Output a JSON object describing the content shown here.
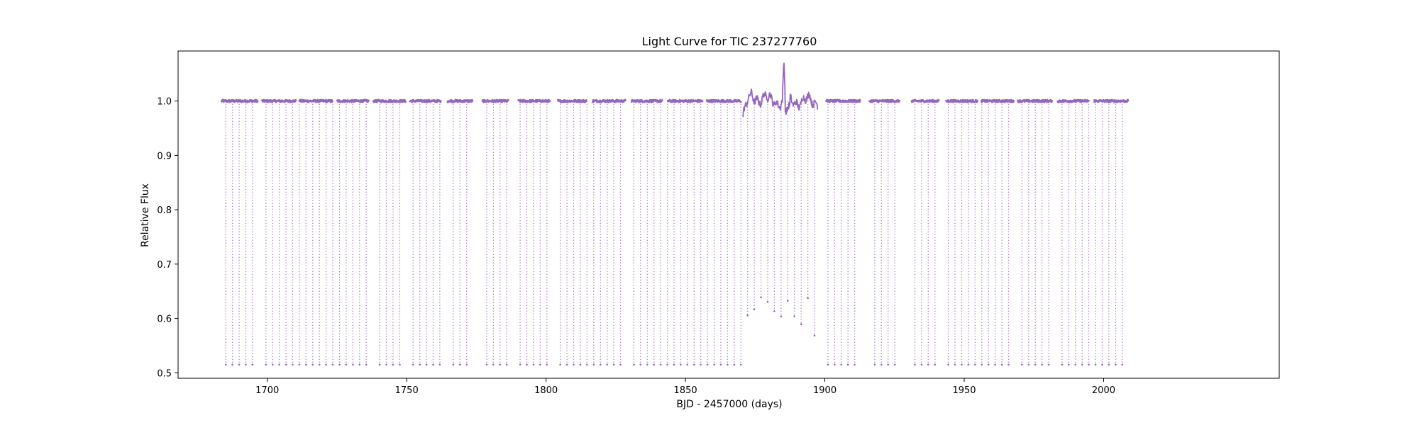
{
  "chart_data": {
    "type": "scatter",
    "title": "Light Curve for TIC 237277760",
    "xlabel": "BJD - 2457000 (days)",
    "ylabel": "Relative Flux",
    "xlim": [
      1668,
      2063
    ],
    "ylim": [
      0.49,
      1.092
    ],
    "x_ticks": [
      1700,
      1750,
      1800,
      1850,
      1900,
      1950,
      2000
    ],
    "y_ticks": [
      0.5,
      0.6,
      0.7,
      0.8,
      0.9,
      1.0
    ],
    "x_tick_labels": [
      "1700",
      "1750",
      "1800",
      "1850",
      "1900",
      "1950",
      "2000"
    ],
    "y_tick_labels": [
      "0.5",
      "0.6",
      "0.7",
      "0.8",
      "0.9",
      "1.0"
    ],
    "grid": false,
    "legend": "none",
    "color": "#9467bd",
    "baseline_flux": 1.0,
    "eclipse_min_flux": 0.515,
    "eclipse_period_days": 2.4,
    "data_segments": [
      {
        "start": 1683.5,
        "end": 1696.8
      },
      {
        "start": 1698.0,
        "end": 1710.3
      },
      {
        "start": 1711.5,
        "end": 1723.5
      },
      {
        "start": 1724.8,
        "end": 1736.6
      },
      {
        "start": 1738.0,
        "end": 1749.8
      },
      {
        "start": 1751.0,
        "end": 1762.3
      },
      {
        "start": 1764.5,
        "end": 1773.7
      },
      {
        "start": 1777.0,
        "end": 1786.6
      },
      {
        "start": 1790.0,
        "end": 1801.5
      },
      {
        "start": 1804.0,
        "end": 1814.7
      },
      {
        "start": 1816.5,
        "end": 1828.5
      },
      {
        "start": 1830.5,
        "end": 1842.0
      },
      {
        "start": 1843.5,
        "end": 1856.3
      },
      {
        "start": 1857.5,
        "end": 1870.0
      },
      {
        "start": 1870.5,
        "end": 1897.5
      },
      {
        "start": 1900.5,
        "end": 1912.8
      },
      {
        "start": 1916.0,
        "end": 1926.8
      },
      {
        "start": 1931.0,
        "end": 1941.0
      },
      {
        "start": 1943.5,
        "end": 1955.0
      },
      {
        "start": 1956.0,
        "end": 1968.0
      },
      {
        "start": 1969.0,
        "end": 1981.5
      },
      {
        "start": 1983.5,
        "end": 1995.0
      },
      {
        "start": 1996.5,
        "end": 2008.8
      }
    ],
    "variable_segment": {
      "start": 1870.5,
      "end": 1897.5,
      "peak_x": 1885.3,
      "peak_flux": 1.066
    }
  }
}
